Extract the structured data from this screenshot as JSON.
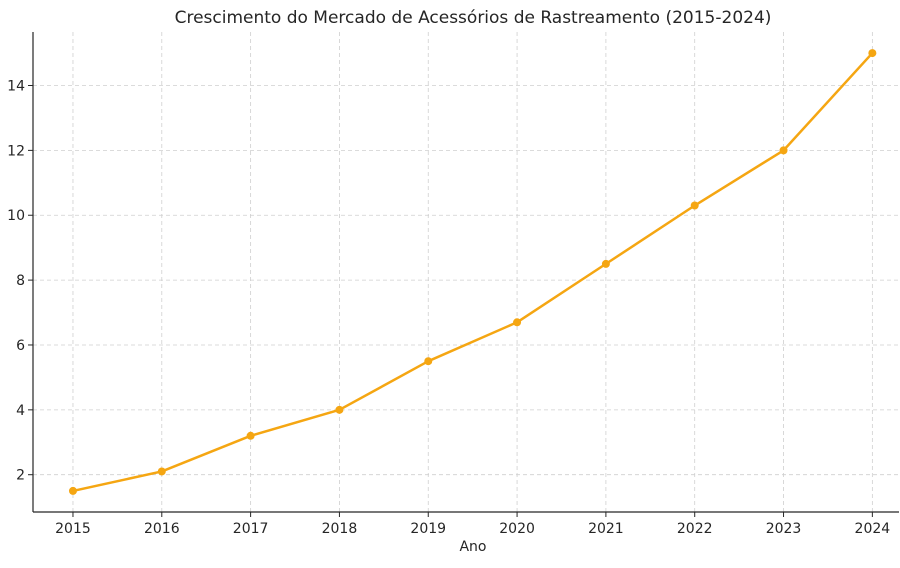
{
  "chart_data": {
    "type": "line",
    "title": "Crescimento do Mercado de Acessórios de Rastreamento (2015-2024)",
    "xlabel": "Ano",
    "ylabel": "",
    "x": [
      "2015",
      "2016",
      "2017",
      "2018",
      "2019",
      "2020",
      "2021",
      "2022",
      "2023",
      "2024"
    ],
    "series": [
      {
        "values": [
          1.5,
          2.1,
          3.2,
          4.0,
          5.5,
          6.7,
          8.5,
          10.3,
          12.0,
          15.0
        ]
      }
    ],
    "xlim": [
      2014.55,
      2024.3
    ],
    "ylim": [
      0.85,
      15.65
    ],
    "yticks": [
      2,
      4,
      6,
      8,
      10,
      12,
      14
    ],
    "grid": true,
    "legend": "none",
    "colors": {
      "line": "#f5a612",
      "marker": "#f5a612"
    }
  }
}
